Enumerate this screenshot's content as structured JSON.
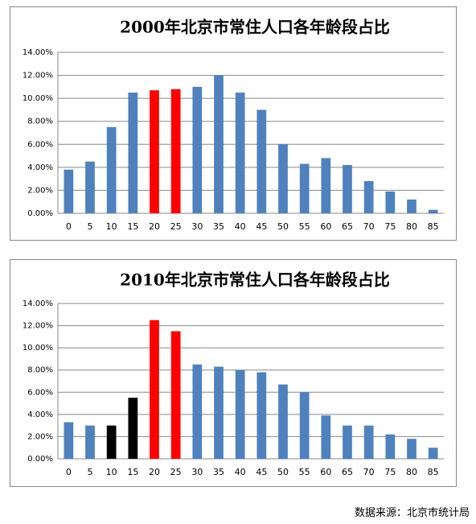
{
  "chart_data": [
    {
      "type": "bar",
      "title": "2000年北京市常住人口各年龄段占比",
      "categories": [
        "0",
        "5",
        "10",
        "15",
        "20",
        "25",
        "30",
        "35",
        "40",
        "45",
        "50",
        "55",
        "60",
        "65",
        "70",
        "75",
        "80",
        "85"
      ],
      "values": [
        3.8,
        4.5,
        7.5,
        10.5,
        10.7,
        10.8,
        11.0,
        12.0,
        10.5,
        9.0,
        6.0,
        4.3,
        4.8,
        4.2,
        2.8,
        1.9,
        1.2,
        0.3
      ],
      "colors": [
        "#4f81bd",
        "#4f81bd",
        "#4f81bd",
        "#4f81bd",
        "#ff0000",
        "#ff0000",
        "#4f81bd",
        "#4f81bd",
        "#4f81bd",
        "#4f81bd",
        "#4f81bd",
        "#4f81bd",
        "#4f81bd",
        "#4f81bd",
        "#4f81bd",
        "#4f81bd",
        "#4f81bd",
        "#4f81bd"
      ],
      "ylim": [
        0,
        14
      ],
      "yticks": [
        {
          "value": 0,
          "label": "0.00%"
        },
        {
          "value": 2,
          "label": "2.00%"
        },
        {
          "value": 4,
          "label": "4.00%"
        },
        {
          "value": 6,
          "label": "6.00%"
        },
        {
          "value": 8,
          "label": "8.00%"
        },
        {
          "value": 10,
          "label": "10.00%"
        },
        {
          "value": 12,
          "label": "12.00%"
        },
        {
          "value": 14,
          "label": "14.00%"
        }
      ],
      "grid": true
    },
    {
      "type": "bar",
      "title": "2010年北京市常住人口各年龄段占比",
      "categories": [
        "0",
        "5",
        "10",
        "15",
        "20",
        "25",
        "30",
        "35",
        "40",
        "45",
        "50",
        "55",
        "60",
        "65",
        "70",
        "75",
        "80",
        "85"
      ],
      "values": [
        3.3,
        3.0,
        3.0,
        5.5,
        12.5,
        11.5,
        8.5,
        8.3,
        8.0,
        7.8,
        6.7,
        6.0,
        3.9,
        3.0,
        3.0,
        2.2,
        1.8,
        1.0
      ],
      "colors": [
        "#4f81bd",
        "#4f81bd",
        "#000000",
        "#000000",
        "#ff0000",
        "#ff0000",
        "#4f81bd",
        "#4f81bd",
        "#4f81bd",
        "#4f81bd",
        "#4f81bd",
        "#4f81bd",
        "#4f81bd",
        "#4f81bd",
        "#4f81bd",
        "#4f81bd",
        "#4f81bd",
        "#4f81bd"
      ],
      "ylim": [
        0,
        14
      ],
      "yticks": [
        {
          "value": 0,
          "label": "0.00%"
        },
        {
          "value": 2,
          "label": "2.00%"
        },
        {
          "value": 4,
          "label": "4.00%"
        },
        {
          "value": 6,
          "label": "6.00%"
        },
        {
          "value": 8,
          "label": "8.00%"
        },
        {
          "value": 10,
          "label": "10.00%"
        },
        {
          "value": 12,
          "label": "12.00%"
        },
        {
          "value": 14,
          "label": "14.00%"
        }
      ],
      "grid": true
    }
  ],
  "source": "数据来源：北京市统计局"
}
